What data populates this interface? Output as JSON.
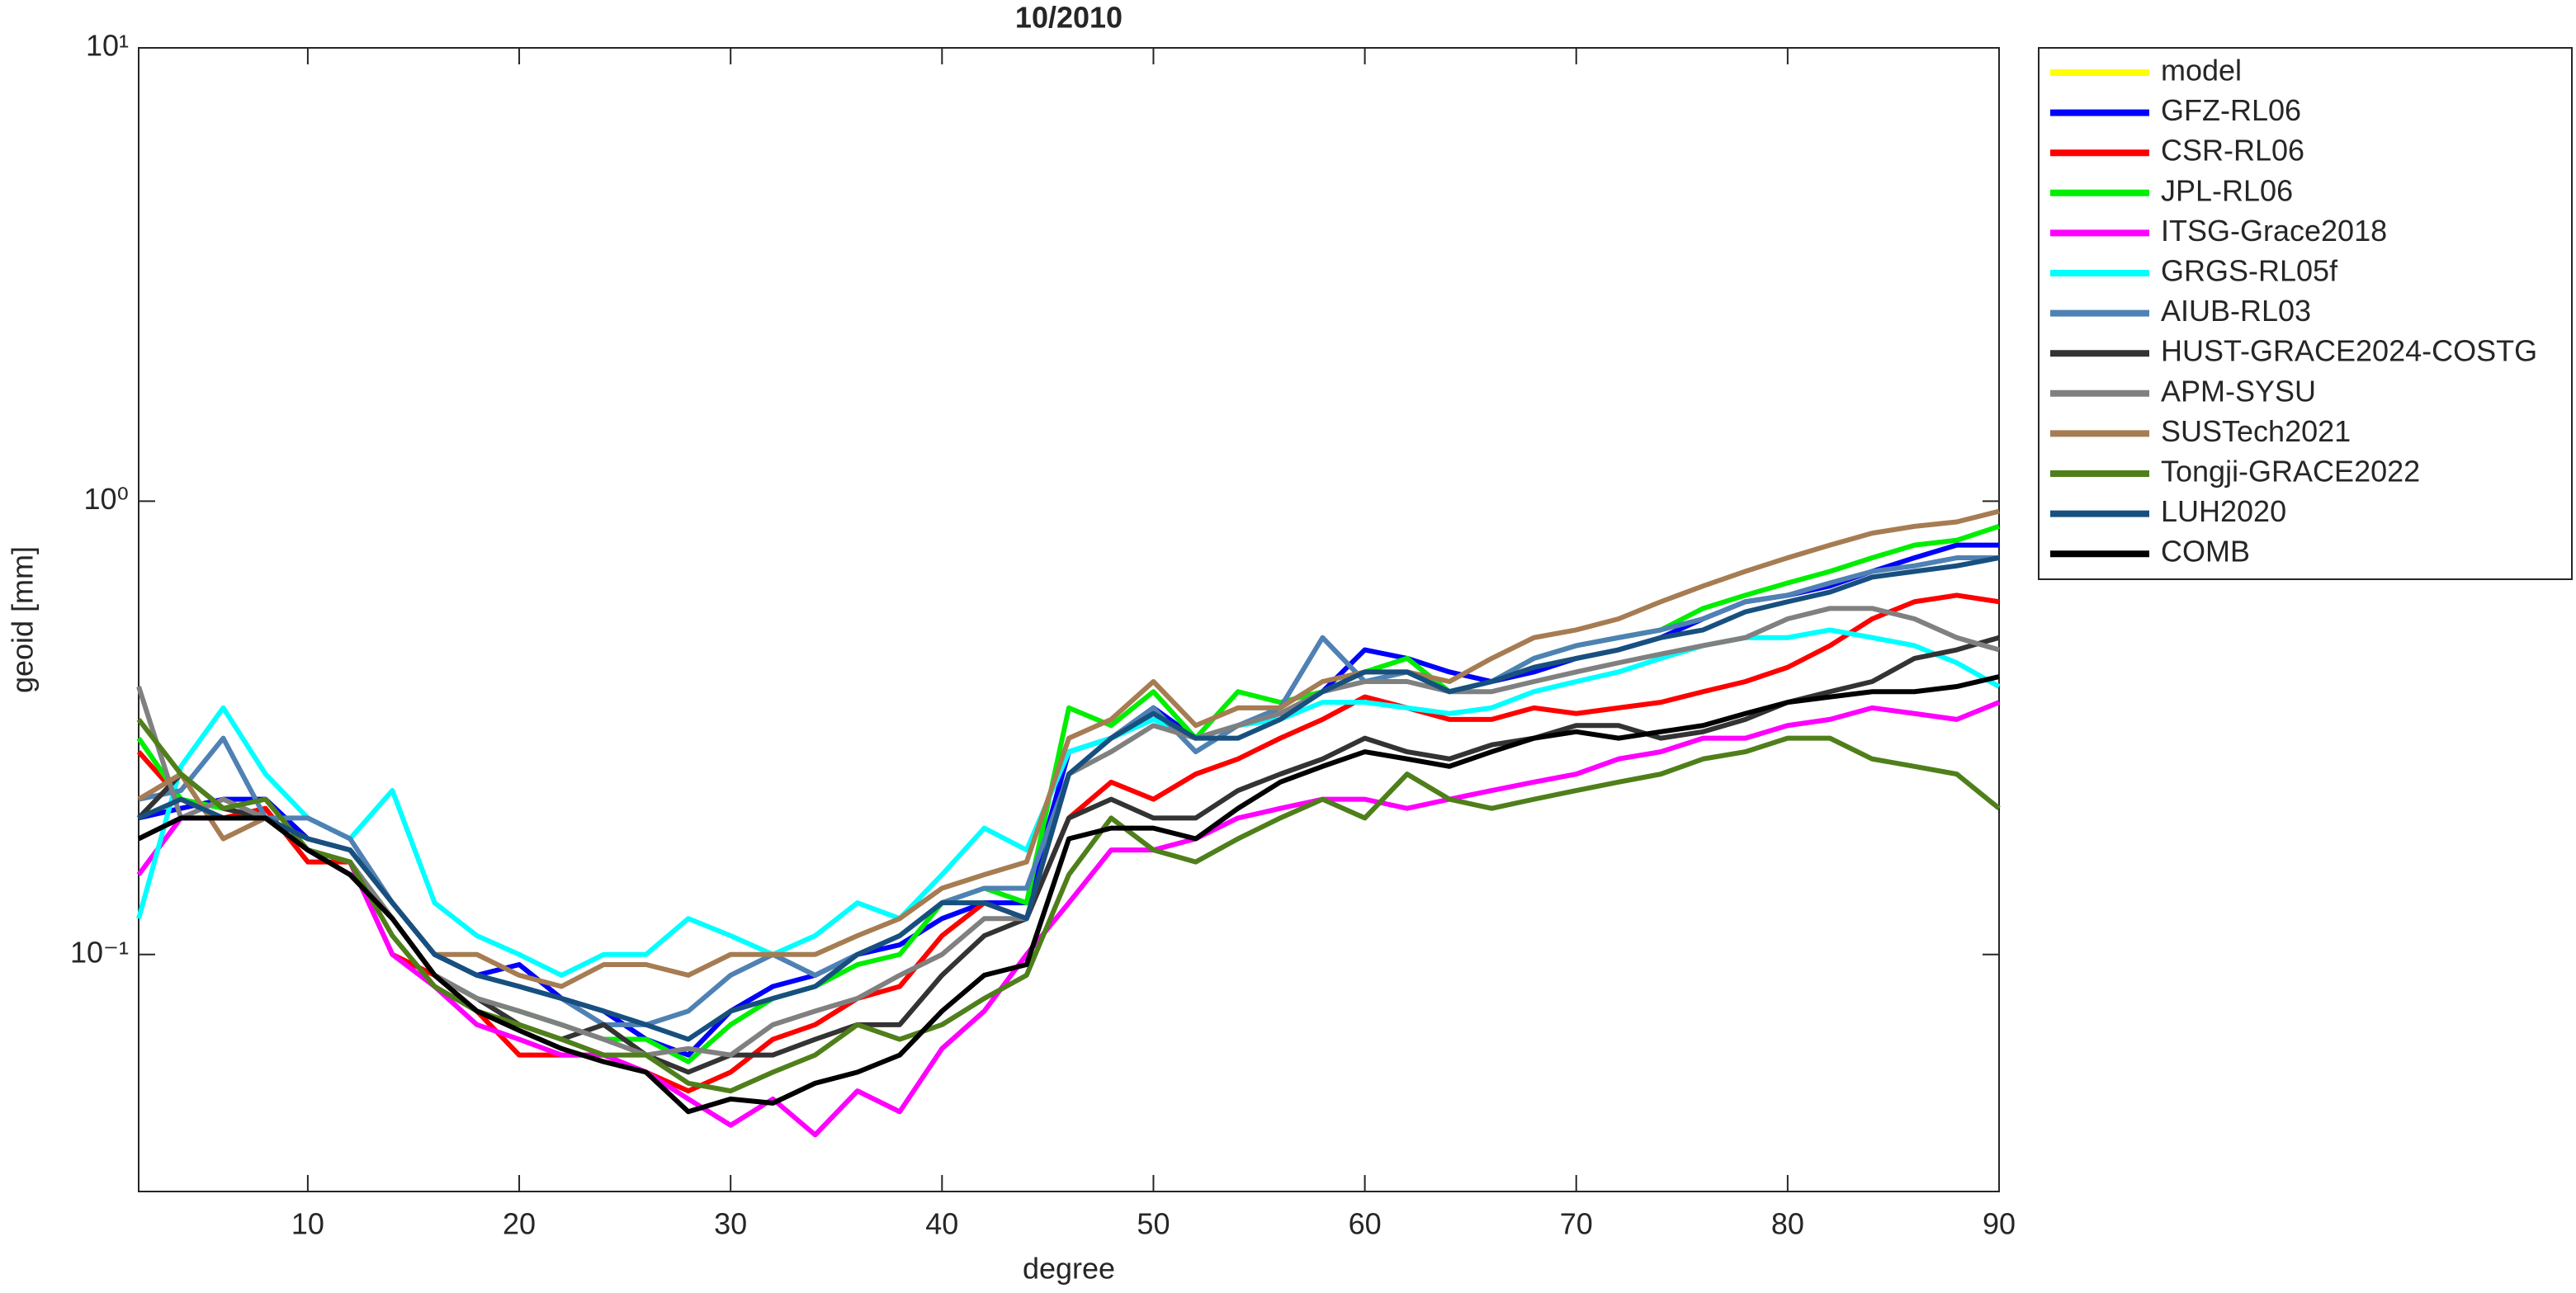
{
  "chart_data": {
    "type": "line",
    "title": "10/2010",
    "xlabel": "degree",
    "ylabel": "geoid [mm]",
    "xlim": [
      2,
      90
    ],
    "xticks": [
      10,
      20,
      30,
      40,
      50,
      60,
      70,
      80,
      90
    ],
    "ylim": [
      0.03,
      10
    ],
    "ylog": true,
    "yticks": [
      {
        "value": 0.1,
        "label": "10⁻¹"
      },
      {
        "value": 1,
        "label": "10⁰"
      },
      {
        "value": 10,
        "label": "10¹"
      }
    ],
    "grid": false,
    "legend": "outside-right",
    "x": [
      2,
      4,
      6,
      8,
      10,
      12,
      14,
      16,
      18,
      20,
      22,
      24,
      26,
      28,
      30,
      32,
      34,
      36,
      38,
      40,
      42,
      44,
      46,
      48,
      50,
      52,
      54,
      56,
      58,
      60,
      62,
      64,
      66,
      68,
      70,
      72,
      74,
      76,
      78,
      80,
      82,
      84,
      86,
      88,
      90
    ],
    "series": [
      {
        "name": "model",
        "color": "#ffff00",
        "values": [
          null,
          null,
          null,
          null,
          null,
          null,
          null,
          null,
          null,
          null,
          null,
          null,
          null,
          null,
          null,
          null,
          null,
          null,
          null,
          null,
          null,
          null,
          null,
          null,
          null,
          null,
          null,
          null,
          null,
          null,
          null,
          null,
          null,
          null,
          null,
          null,
          null,
          null,
          null,
          null,
          null,
          null,
          null,
          null,
          null
        ]
      },
      {
        "name": "GFZ-RL06",
        "color": "#0000ff",
        "values": [
          0.2,
          0.21,
          0.22,
          0.22,
          0.18,
          0.17,
          0.13,
          0.1,
          0.09,
          0.095,
          0.08,
          0.075,
          0.065,
          0.06,
          0.075,
          0.085,
          0.09,
          0.1,
          0.105,
          0.12,
          0.13,
          0.13,
          0.28,
          0.3,
          0.35,
          0.3,
          0.32,
          0.34,
          0.38,
          0.47,
          0.45,
          0.42,
          0.4,
          0.42,
          0.45,
          0.47,
          0.5,
          0.55,
          0.6,
          0.62,
          0.65,
          0.7,
          0.75,
          0.8,
          0.8
        ]
      },
      {
        "name": "CSR-RL06",
        "color": "#ff0000",
        "values": [
          0.28,
          0.22,
          0.2,
          0.21,
          0.16,
          0.16,
          0.1,
          0.09,
          0.075,
          0.06,
          0.06,
          0.06,
          0.055,
          0.05,
          0.055,
          0.065,
          0.07,
          0.08,
          0.085,
          0.11,
          0.13,
          0.12,
          0.2,
          0.24,
          0.22,
          0.25,
          0.27,
          0.3,
          0.33,
          0.37,
          0.35,
          0.33,
          0.33,
          0.35,
          0.34,
          0.35,
          0.36,
          0.38,
          0.4,
          0.43,
          0.48,
          0.55,
          0.6,
          0.62,
          0.6
        ]
      },
      {
        "name": "JPL-RL06",
        "color": "#00ee00",
        "values": [
          0.3,
          0.22,
          0.21,
          0.2,
          0.17,
          0.16,
          0.12,
          0.09,
          0.08,
          0.075,
          0.07,
          0.065,
          0.065,
          0.058,
          0.07,
          0.08,
          0.085,
          0.095,
          0.1,
          0.13,
          0.14,
          0.13,
          0.35,
          0.32,
          0.38,
          0.3,
          0.38,
          0.36,
          0.38,
          0.42,
          0.45,
          0.38,
          0.4,
          0.45,
          0.48,
          0.5,
          0.52,
          0.58,
          0.62,
          0.66,
          0.7,
          0.75,
          0.8,
          0.82,
          0.88
        ]
      },
      {
        "name": "ITSG-Grace2018",
        "color": "#ff00ff",
        "values": [
          0.15,
          0.2,
          0.2,
          0.2,
          0.17,
          0.16,
          0.1,
          0.085,
          0.07,
          0.065,
          0.06,
          0.06,
          0.055,
          0.048,
          0.042,
          0.048,
          0.04,
          0.05,
          0.045,
          0.062,
          0.075,
          0.1,
          0.13,
          0.17,
          0.17,
          0.18,
          0.2,
          0.21,
          0.22,
          0.22,
          0.21,
          0.22,
          0.23,
          0.24,
          0.25,
          0.27,
          0.28,
          0.3,
          0.3,
          0.32,
          0.33,
          0.35,
          0.34,
          0.33,
          0.36
        ]
      },
      {
        "name": "GRGS-RL05f",
        "color": "#00ffff",
        "values": [
          0.12,
          0.26,
          0.35,
          0.25,
          0.2,
          0.18,
          0.23,
          0.13,
          0.11,
          0.1,
          0.09,
          0.1,
          0.1,
          0.12,
          0.11,
          0.1,
          0.11,
          0.13,
          0.12,
          0.15,
          0.19,
          0.17,
          0.28,
          0.3,
          0.33,
          0.3,
          0.32,
          0.33,
          0.36,
          0.36,
          0.35,
          0.34,
          0.35,
          0.38,
          0.4,
          0.42,
          0.45,
          0.48,
          0.5,
          0.5,
          0.52,
          0.5,
          0.48,
          0.44,
          0.39
        ]
      },
      {
        "name": "AIUB-RL03",
        "color": "#4f81b4",
        "values": [
          0.22,
          0.23,
          0.3,
          0.2,
          0.2,
          0.18,
          0.13,
          0.1,
          0.09,
          0.085,
          0.08,
          0.07,
          0.07,
          0.075,
          0.09,
          0.1,
          0.09,
          0.1,
          0.11,
          0.13,
          0.14,
          0.14,
          0.25,
          0.3,
          0.35,
          0.28,
          0.32,
          0.35,
          0.5,
          0.4,
          0.42,
          0.38,
          0.4,
          0.45,
          0.48,
          0.5,
          0.52,
          0.55,
          0.6,
          0.62,
          0.66,
          0.7,
          0.72,
          0.75,
          0.75
        ]
      },
      {
        "name": "HUST-GRACE2024-COSTG",
        "color": "#333333",
        "values": [
          0.2,
          0.25,
          0.21,
          0.2,
          0.17,
          0.15,
          0.12,
          0.09,
          0.08,
          0.07,
          0.065,
          0.07,
          0.06,
          0.055,
          0.06,
          0.06,
          0.065,
          0.07,
          0.07,
          0.09,
          0.11,
          0.12,
          0.2,
          0.22,
          0.2,
          0.2,
          0.23,
          0.25,
          0.27,
          0.3,
          0.28,
          0.27,
          0.29,
          0.3,
          0.32,
          0.32,
          0.3,
          0.31,
          0.33,
          0.36,
          0.38,
          0.4,
          0.45,
          0.47,
          0.5
        ]
      },
      {
        "name": "APM-SYSU",
        "color": "#808080",
        "values": [
          0.39,
          0.2,
          0.22,
          0.2,
          0.17,
          0.16,
          0.12,
          0.09,
          0.08,
          0.075,
          0.07,
          0.065,
          0.06,
          0.062,
          0.06,
          0.07,
          0.075,
          0.08,
          0.09,
          0.1,
          0.12,
          0.12,
          0.25,
          0.28,
          0.32,
          0.3,
          0.32,
          0.34,
          0.38,
          0.4,
          0.4,
          0.38,
          0.38,
          0.4,
          0.42,
          0.44,
          0.46,
          0.48,
          0.5,
          0.55,
          0.58,
          0.58,
          0.55,
          0.5,
          0.47
        ]
      },
      {
        "name": "SUSTech2021",
        "color": "#a67c52",
        "values": [
          0.22,
          0.25,
          0.18,
          0.2,
          0.18,
          0.17,
          0.13,
          0.1,
          0.1,
          0.09,
          0.085,
          0.095,
          0.095,
          0.09,
          0.1,
          0.1,
          0.1,
          0.11,
          0.12,
          0.14,
          0.15,
          0.16,
          0.3,
          0.33,
          0.4,
          0.32,
          0.35,
          0.35,
          0.4,
          0.42,
          0.42,
          0.4,
          0.45,
          0.5,
          0.52,
          0.55,
          0.6,
          0.65,
          0.7,
          0.75,
          0.8,
          0.85,
          0.88,
          0.9,
          0.95
        ]
      },
      {
        "name": "Tongji-GRACE2022",
        "color": "#4f7f1a",
        "values": [
          0.33,
          0.25,
          0.21,
          0.22,
          0.17,
          0.16,
          0.11,
          0.085,
          0.075,
          0.07,
          0.065,
          0.06,
          0.06,
          0.052,
          0.05,
          0.055,
          0.06,
          0.07,
          0.065,
          0.07,
          0.08,
          0.09,
          0.15,
          0.2,
          0.17,
          0.16,
          0.18,
          0.2,
          0.22,
          0.2,
          0.25,
          0.22,
          0.21,
          0.22,
          0.23,
          0.24,
          0.25,
          0.27,
          0.28,
          0.3,
          0.3,
          0.27,
          0.26,
          0.25,
          0.21
        ]
      },
      {
        "name": "LUH2020",
        "color": "#17507f",
        "values": [
          0.2,
          0.22,
          0.2,
          0.2,
          0.18,
          0.17,
          0.13,
          0.1,
          0.09,
          0.085,
          0.08,
          0.075,
          0.07,
          0.065,
          0.075,
          0.08,
          0.085,
          0.1,
          0.11,
          0.13,
          0.13,
          0.12,
          0.25,
          0.3,
          0.34,
          0.3,
          0.3,
          0.33,
          0.38,
          0.42,
          0.42,
          0.38,
          0.4,
          0.43,
          0.45,
          0.47,
          0.5,
          0.52,
          0.57,
          0.6,
          0.63,
          0.68,
          0.7,
          0.72,
          0.75
        ]
      },
      {
        "name": "COMB",
        "color": "#000000",
        "values": [
          0.18,
          0.2,
          0.2,
          0.2,
          0.17,
          0.15,
          0.12,
          0.09,
          0.075,
          0.068,
          0.062,
          0.058,
          0.055,
          0.045,
          0.048,
          0.047,
          0.052,
          0.055,
          0.06,
          0.075,
          0.09,
          0.095,
          0.18,
          0.19,
          0.19,
          0.18,
          0.21,
          0.24,
          0.26,
          0.28,
          0.27,
          0.26,
          0.28,
          0.3,
          0.31,
          0.3,
          0.31,
          0.32,
          0.34,
          0.36,
          0.37,
          0.38,
          0.38,
          0.39,
          0.41
        ]
      }
    ]
  }
}
